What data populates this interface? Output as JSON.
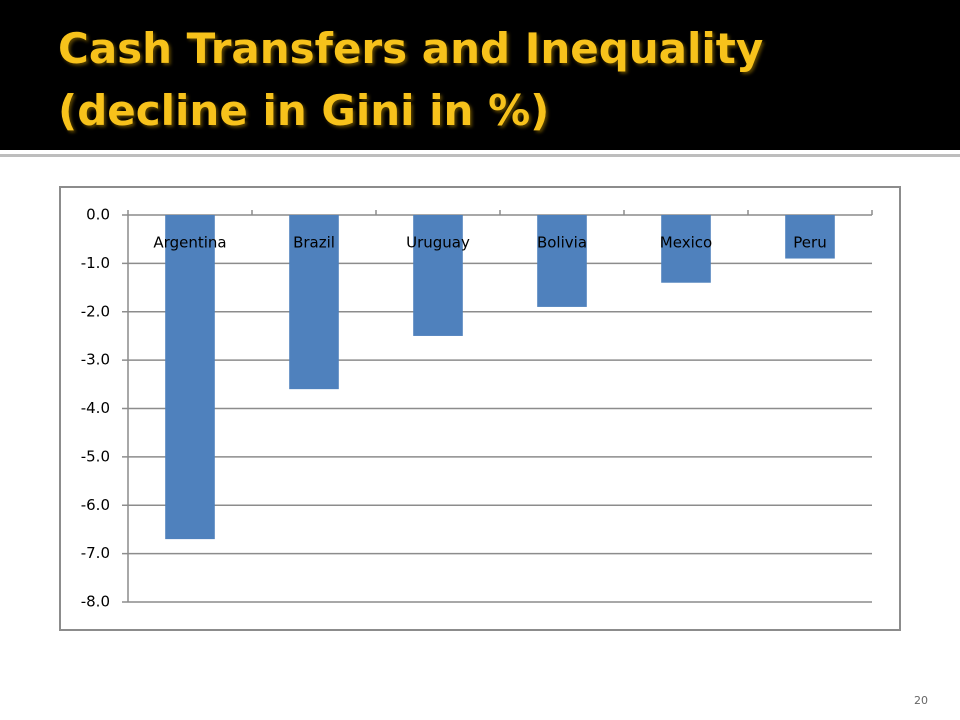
{
  "chart_data": {
    "type": "bar",
    "title": "Cash Transfers and Inequality (decline in Gini in %)",
    "categories": [
      "Argentina",
      "Brazil",
      "Uruguay",
      "Bolivia",
      "Mexico",
      "Peru"
    ],
    "values": [
      -6.7,
      -3.6,
      -2.5,
      -1.9,
      -1.4,
      -0.9
    ],
    "color": "#4f81bd",
    "ylim": [
      -8,
      0
    ],
    "yticks": [
      {
        "value": 0,
        "label": "0.0"
      },
      {
        "value": -1,
        "label": "-1.0"
      },
      {
        "value": -2,
        "label": "-2.0"
      },
      {
        "value": -3,
        "label": "-3.0"
      },
      {
        "value": -4,
        "label": "-4.0"
      },
      {
        "value": -5,
        "label": "-5.0"
      },
      {
        "value": -6,
        "label": "-6.0"
      },
      {
        "value": -7,
        "label": "-7.0"
      },
      {
        "value": -8,
        "label": "-8.0"
      }
    ],
    "grid": true
  },
  "page_number": "20"
}
